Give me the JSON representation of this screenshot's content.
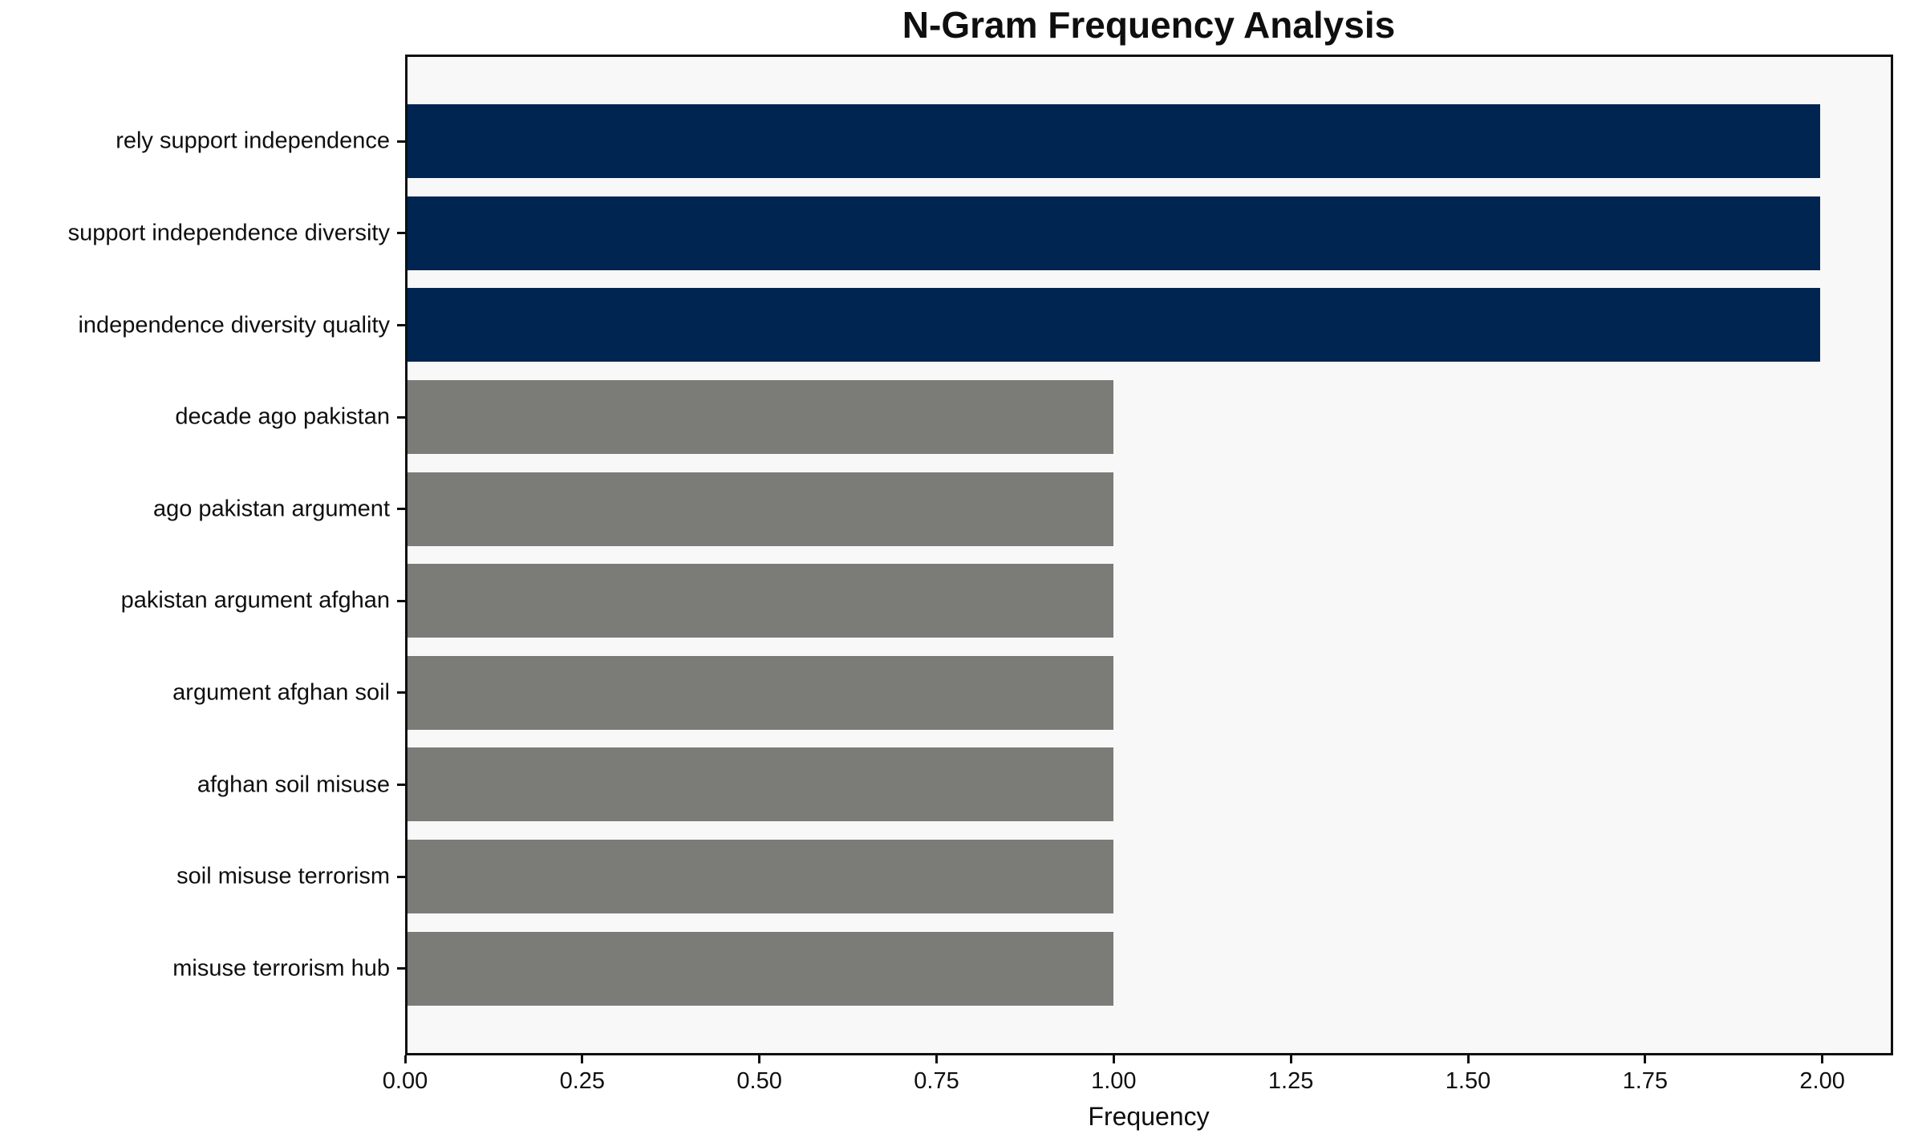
{
  "chart_data": {
    "type": "bar",
    "orientation": "horizontal",
    "title": "N-Gram Frequency Analysis",
    "xlabel": "Frequency",
    "ylabel": "",
    "categories": [
      "rely support independence",
      "support independence diversity",
      "independence diversity quality",
      "decade ago pakistan",
      "ago pakistan argument",
      "pakistan argument afghan",
      "argument afghan soil",
      "afghan soil misuse",
      "soil misuse terrorism",
      "misuse terrorism hub"
    ],
    "values": [
      2,
      2,
      2,
      1,
      1,
      1,
      1,
      1,
      1,
      1
    ],
    "bar_colors": [
      "#012551",
      "#012551",
      "#012551",
      "#7b7b78",
      "#7b7b78",
      "#7b7b78",
      "#7b7b78",
      "#7b7b78",
      "#7b7b78",
      "#7b7b78"
    ],
    "xlim": [
      0,
      2.1
    ],
    "xticks": [
      "0.00",
      "0.25",
      "0.50",
      "0.75",
      "1.00",
      "1.25",
      "1.50",
      "1.75",
      "2.00"
    ],
    "grid": false,
    "legend": false,
    "colors": {
      "bar_highlight": "#012551",
      "bar_default": "#7b7b78",
      "plot_background": "#f8f8f8",
      "figure_background": "#ffffff",
      "spine": "#0f0f0f",
      "text": "#0f0f0f"
    }
  }
}
